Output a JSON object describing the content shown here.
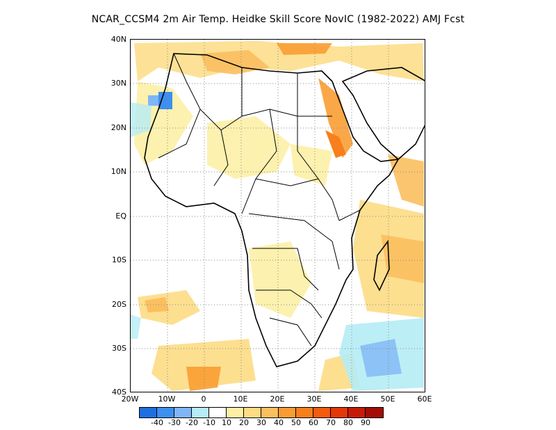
{
  "title": "NCAR_CCSM4  2m Air Temp. Heidke Skill Score NovIC (1982-2022) AMJ Fcst",
  "map": {
    "lon_range": [
      -20,
      60
    ],
    "lat_range": [
      -40,
      40
    ],
    "lat_labels": [
      "40N",
      "30N",
      "20N",
      "10N",
      "EQ",
      "10S",
      "20S",
      "30S",
      "40S"
    ],
    "lon_labels": [
      "20W",
      "10W",
      "0",
      "10E",
      "20E",
      "30E",
      "40E",
      "50E",
      "60E"
    ],
    "grid": "dotted"
  },
  "colorbar": {
    "colors": [
      "#1f6fe0",
      "#3d8ff0",
      "#7fb6f6",
      "#b5ecf5",
      "#ffffff",
      "#fdf0a6",
      "#fddc84",
      "#fbbf5f",
      "#f99d33",
      "#f77f1c",
      "#f35b0e",
      "#e4370a",
      "#c51c08",
      "#a40d05"
    ],
    "labels": [
      "-40",
      "-30",
      "-20",
      "-10",
      "10",
      "20",
      "30",
      "40",
      "50",
      "60",
      "70",
      "80",
      "90"
    ]
  }
}
